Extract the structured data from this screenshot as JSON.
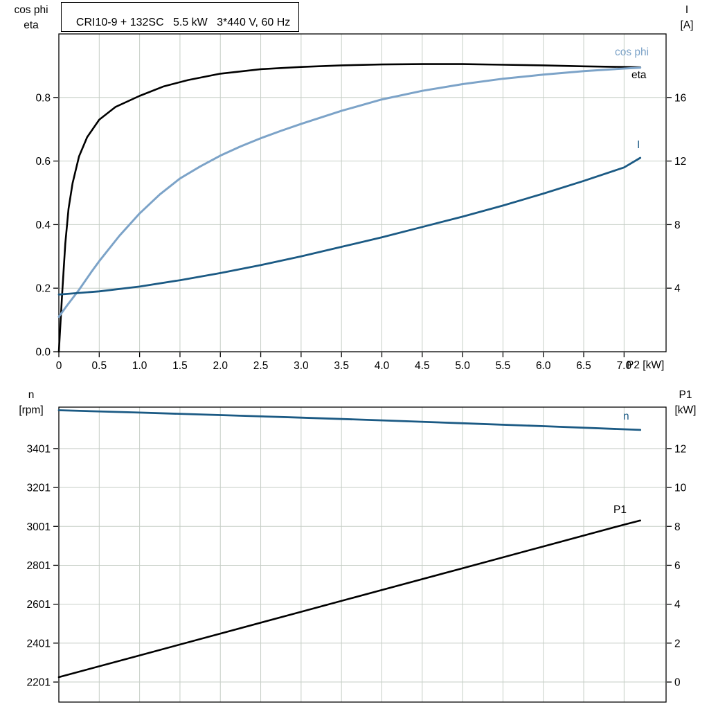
{
  "colors": {
    "black": "#000000",
    "light_blue": "#7ca3c8",
    "dark_blue": "#1b5a84",
    "grid": "#c6cec6",
    "axis": "#000000",
    "background": "#ffffff"
  },
  "chart_data": [
    {
      "type": "line",
      "title": "CRI10-9 + 132SC   5.5 kW   3*440 V, 60 Hz",
      "xlabel": "P2 [kW]",
      "xlim": [
        0,
        7.52
      ],
      "grid": true,
      "x_tick_values": [
        0,
        0.5,
        1.0,
        1.5,
        2.0,
        2.5,
        3.0,
        3.5,
        4.0,
        4.5,
        5.0,
        5.5,
        6.0,
        6.5,
        7.0
      ],
      "x_tick_labels": [
        "0",
        "0.5",
        "1.0",
        "1.5",
        "2.0",
        "2.5",
        "3.0",
        "3.5",
        "4.0",
        "4.5",
        "5.0",
        "5.5",
        "6.0",
        "6.5",
        "7.0"
      ],
      "left_axis": {
        "title_lines": [
          "cos phi",
          "eta"
        ],
        "lim": [
          0,
          1.0
        ],
        "tick_values": [
          0,
          0.2,
          0.4,
          0.6,
          0.8
        ],
        "tick_labels": [
          "0.0",
          "0.2",
          "0.4",
          "0.6",
          "0.8"
        ]
      },
      "right_axis": {
        "title_lines": [
          "I",
          "[A]"
        ],
        "lim": [
          0,
          20
        ],
        "tick_values": [
          4,
          8,
          12,
          16
        ],
        "tick_labels": [
          "4",
          "8",
          "12",
          "16"
        ]
      },
      "series": [
        {
          "name": "eta",
          "label": "eta",
          "axis": "left",
          "color_key": "black",
          "x": [
            0,
            0.04,
            0.08,
            0.12,
            0.17,
            0.25,
            0.35,
            0.5,
            0.7,
            1.0,
            1.3,
            1.6,
            2.0,
            2.5,
            3.0,
            3.5,
            4.0,
            4.5,
            5.0,
            5.5,
            6.0,
            6.5,
            7.0,
            7.2
          ],
          "y": [
            0,
            0.18,
            0.34,
            0.45,
            0.53,
            0.615,
            0.675,
            0.73,
            0.77,
            0.805,
            0.835,
            0.855,
            0.875,
            0.889,
            0.896,
            0.901,
            0.904,
            0.905,
            0.905,
            0.903,
            0.901,
            0.898,
            0.896,
            0.895
          ]
        },
        {
          "name": "cos-phi",
          "label": "cos phi",
          "axis": "left",
          "color_key": "light_blue",
          "x": [
            0,
            0.1,
            0.25,
            0.4,
            0.5,
            0.75,
            1.0,
            1.25,
            1.5,
            1.75,
            2.0,
            2.25,
            2.5,
            2.75,
            3.0,
            3.5,
            4.0,
            4.5,
            5.0,
            5.5,
            6.0,
            6.5,
            7.0,
            7.2
          ],
          "y": [
            0.11,
            0.145,
            0.195,
            0.25,
            0.285,
            0.365,
            0.435,
            0.495,
            0.545,
            0.583,
            0.617,
            0.646,
            0.672,
            0.695,
            0.717,
            0.758,
            0.794,
            0.821,
            0.842,
            0.859,
            0.872,
            0.883,
            0.891,
            0.894
          ]
        },
        {
          "name": "current",
          "label": "I",
          "axis": "right",
          "color_key": "dark_blue",
          "x": [
            0,
            0.5,
            1.0,
            1.5,
            2.0,
            2.5,
            3.0,
            3.5,
            4.0,
            4.5,
            5.0,
            5.5,
            6.0,
            6.5,
            7.0,
            7.2
          ],
          "y": [
            3.6,
            3.8,
            4.1,
            4.5,
            4.95,
            5.45,
            6.0,
            6.6,
            7.2,
            7.85,
            8.5,
            9.2,
            9.95,
            10.75,
            11.6,
            12.2
          ]
        }
      ]
    },
    {
      "type": "line",
      "title": "",
      "xlabel": "",
      "xlim": [
        0,
        7.52
      ],
      "grid": true,
      "x_tick_values": [
        0,
        0.5,
        1.0,
        1.5,
        2.0,
        2.5,
        3.0,
        3.5,
        4.0,
        4.5,
        5.0,
        5.5,
        6.0,
        6.5,
        7.0
      ],
      "x_tick_labels": [],
      "left_axis": {
        "title_lines": [
          "n",
          "[rpm]"
        ],
        "lim": [
          2098,
          3614
        ],
        "tick_values": [
          2201,
          2401,
          2601,
          2801,
          3001,
          3201,
          3401
        ],
        "tick_labels": [
          "2201",
          "2401",
          "2601",
          "2801",
          "3001",
          "3201",
          "3401"
        ]
      },
      "right_axis": {
        "title_lines": [
          "P1",
          "[kW]"
        ],
        "lim": [
          -1.03,
          14.13
        ],
        "tick_values": [
          0,
          2,
          4,
          6,
          8,
          10,
          12
        ],
        "tick_labels": [
          "0",
          "2",
          "4",
          "6",
          "8",
          "10",
          "12"
        ]
      },
      "series": [
        {
          "name": "speed",
          "label": "n",
          "axis": "left",
          "color_key": "dark_blue",
          "x": [
            0,
            1,
            2,
            3,
            4,
            5,
            6,
            7,
            7.2
          ],
          "y": [
            3598,
            3586,
            3573,
            3560,
            3546,
            3531,
            3516,
            3500,
            3497
          ]
        },
        {
          "name": "p1",
          "label": "P1",
          "axis": "right",
          "color_key": "black",
          "x": [
            0,
            1,
            2,
            3,
            4,
            5,
            6,
            7,
            7.2
          ],
          "y": [
            0.25,
            1.37,
            2.49,
            3.61,
            4.73,
            5.85,
            6.97,
            8.09,
            8.3
          ]
        }
      ]
    }
  ]
}
